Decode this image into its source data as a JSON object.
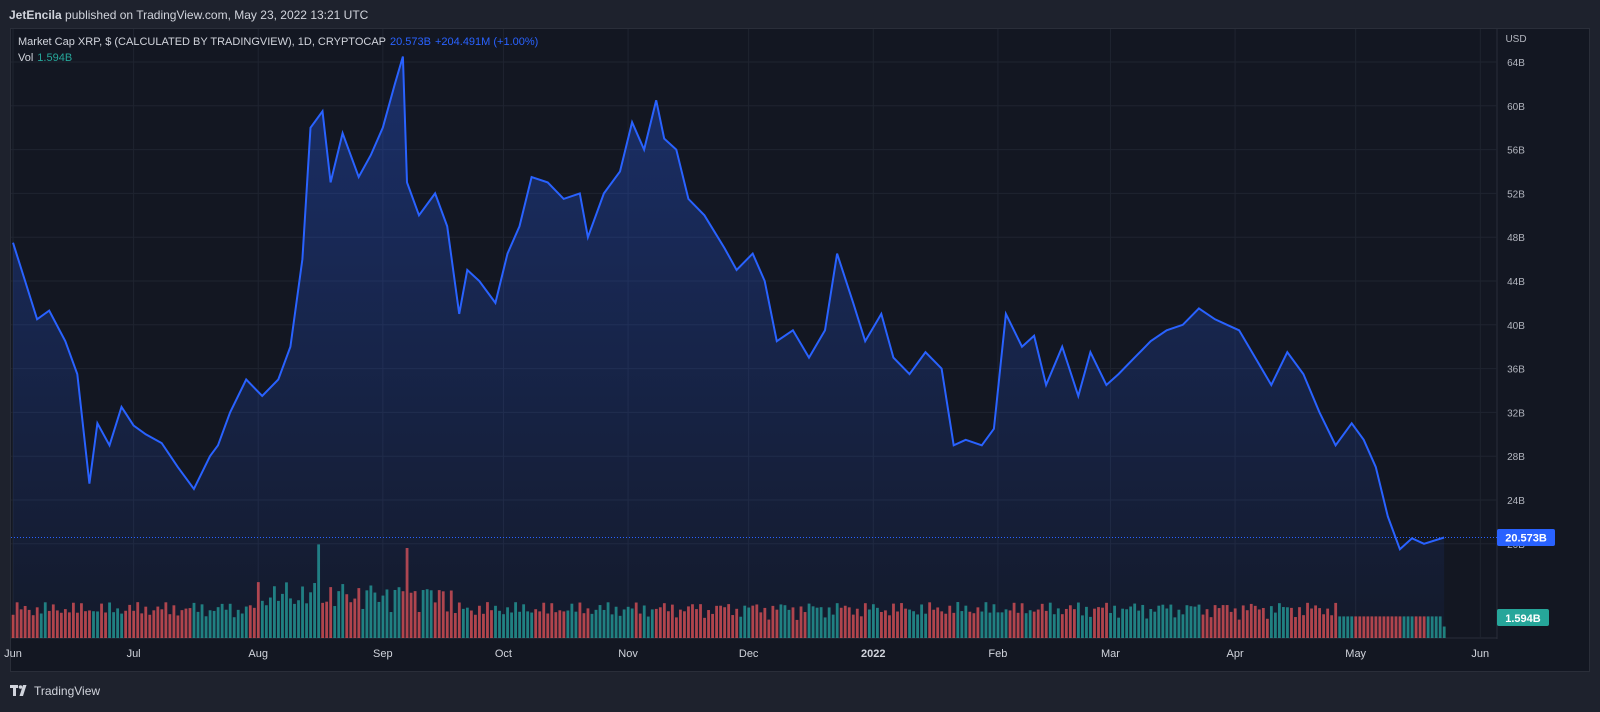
{
  "header": {
    "author": "JetEncila",
    "published_text": "published on TradingView.com, May 23, 2022 13:21 UTC"
  },
  "legend": {
    "symbol": "Market Cap XRP, $ (CALCULATED BY TRADINGVIEW), 1D, CRYPTOCAP",
    "last_value": "20.573B",
    "change": "+204.491M (+1.00%)",
    "volume_label": "Vol",
    "volume_value": "1.594B"
  },
  "price_axis": {
    "currency": "USD",
    "ticks": [
      "64B",
      "60B",
      "56B",
      "52B",
      "48B",
      "44B",
      "40B",
      "36B",
      "32B",
      "28B",
      "24B",
      "20B"
    ],
    "last_value_badge": "20.573B",
    "volume_badge": "1.594B"
  },
  "footer": {
    "brand": "TradingView",
    "logo_icon": "tradingview-logo-icon"
  },
  "colors": {
    "line": "#2962ff",
    "up_volume": "#26a69a",
    "down_volume": "#ef5350",
    "background": "#131722"
  },
  "chart_data": {
    "type": "area",
    "title": "Market Cap XRP, $ (CALCULATED BY TRADINGVIEW), 1D, CRYPTOCAP",
    "ylabel": "USD",
    "y_unit": "billions USD",
    "ylim": [
      18,
      66
    ],
    "x_ticks": [
      "Jun",
      "Jul",
      "Aug",
      "Sep",
      "Oct",
      "Nov",
      "Dec",
      "2022",
      "Feb",
      "Mar",
      "Apr",
      "May",
      "Jun"
    ],
    "date_range": [
      "2021-06-01",
      "2022-05-23"
    ],
    "grid": true,
    "series": [
      {
        "name": "Market Cap XRP",
        "x": [
          "2021-06-01",
          "2021-06-04",
          "2021-06-07",
          "2021-06-10",
          "2021-06-14",
          "2021-06-17",
          "2021-06-20",
          "2021-06-22",
          "2021-06-25",
          "2021-06-28",
          "2021-07-01",
          "2021-07-04",
          "2021-07-08",
          "2021-07-12",
          "2021-07-16",
          "2021-07-20",
          "2021-07-22",
          "2021-07-25",
          "2021-07-29",
          "2021-08-02",
          "2021-08-06",
          "2021-08-09",
          "2021-08-12",
          "2021-08-14",
          "2021-08-17",
          "2021-08-19",
          "2021-08-22",
          "2021-08-26",
          "2021-08-29",
          "2021-09-01",
          "2021-09-04",
          "2021-09-06",
          "2021-09-07",
          "2021-09-10",
          "2021-09-14",
          "2021-09-17",
          "2021-09-20",
          "2021-09-22",
          "2021-09-25",
          "2021-09-29",
          "2021-10-02",
          "2021-10-05",
          "2021-10-08",
          "2021-10-12",
          "2021-10-16",
          "2021-10-20",
          "2021-10-22",
          "2021-10-26",
          "2021-10-30",
          "2021-11-02",
          "2021-11-05",
          "2021-11-08",
          "2021-11-10",
          "2021-11-13",
          "2021-11-16",
          "2021-11-20",
          "2021-11-25",
          "2021-11-28",
          "2021-12-02",
          "2021-12-05",
          "2021-12-08",
          "2021-12-12",
          "2021-12-16",
          "2021-12-20",
          "2021-12-23",
          "2021-12-27",
          "2021-12-30",
          "2022-01-03",
          "2022-01-06",
          "2022-01-10",
          "2022-01-14",
          "2022-01-18",
          "2022-01-21",
          "2022-01-24",
          "2022-01-28",
          "2022-01-31",
          "2022-02-03",
          "2022-02-07",
          "2022-02-10",
          "2022-02-13",
          "2022-02-17",
          "2022-02-21",
          "2022-02-24",
          "2022-02-28",
          "2022-03-03",
          "2022-03-07",
          "2022-03-11",
          "2022-03-15",
          "2022-03-19",
          "2022-03-23",
          "2022-03-27",
          "2022-03-30",
          "2022-04-02",
          "2022-04-06",
          "2022-04-10",
          "2022-04-14",
          "2022-04-18",
          "2022-04-22",
          "2022-04-26",
          "2022-04-30",
          "2022-05-03",
          "2022-05-06",
          "2022-05-09",
          "2022-05-12",
          "2022-05-15",
          "2022-05-18",
          "2022-05-23"
        ],
        "values": [
          47.5,
          44.0,
          40.5,
          41.3,
          38.5,
          35.5,
          25.5,
          31.0,
          29.0,
          32.5,
          30.8,
          30.0,
          29.2,
          27.0,
          25.0,
          28.0,
          29.0,
          32.0,
          35.0,
          33.5,
          35.0,
          38.0,
          46.0,
          58.0,
          59.5,
          53.0,
          57.5,
          53.5,
          55.5,
          58.0,
          62.0,
          64.5,
          53.0,
          50.0,
          52.0,
          49.0,
          41.0,
          45.0,
          44.0,
          42.0,
          46.5,
          49.0,
          53.5,
          53.0,
          51.5,
          52.0,
          48.0,
          52.0,
          54.0,
          58.5,
          56.0,
          60.5,
          57.0,
          56.0,
          51.5,
          50.0,
          47.0,
          45.0,
          46.5,
          44.0,
          38.5,
          39.5,
          37.0,
          39.5,
          46.5,
          42.0,
          38.5,
          41.0,
          37.0,
          35.5,
          37.5,
          36.0,
          29.0,
          29.5,
          29.0,
          30.5,
          41.0,
          38.0,
          39.0,
          34.5,
          38.0,
          33.5,
          37.5,
          34.5,
          35.5,
          37.0,
          38.5,
          39.5,
          40.0,
          41.5,
          40.5,
          40.0,
          39.5,
          37.0,
          34.5,
          37.5,
          35.5,
          32.0,
          29.0,
          31.0,
          29.5,
          27.0,
          22.5,
          19.5,
          20.5,
          20.0,
          20.573
        ]
      },
      {
        "name": "Vol",
        "unit": "billions USD",
        "last": 1.594,
        "colors": "green = up day, red = down day",
        "peaks": [
          {
            "x": "2021-08-16",
            "value": 13.0
          },
          {
            "x": "2021-09-07",
            "value": 12.5
          }
        ]
      }
    ]
  }
}
